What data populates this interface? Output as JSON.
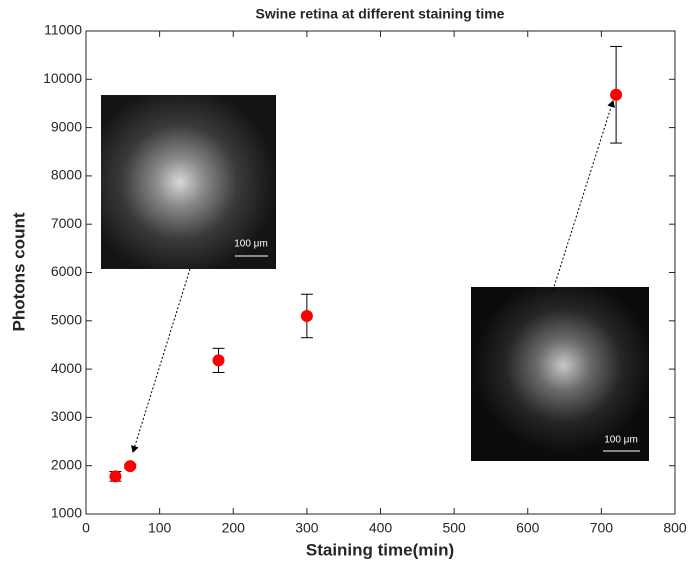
{
  "chart_data": {
    "type": "scatter",
    "title": "Swine retina at different staining time",
    "xlabel": "Staining time(min)",
    "ylabel": "Photons count",
    "x": [
      40,
      60,
      180,
      300,
      720
    ],
    "values": [
      1780,
      1990,
      4180,
      5100,
      9680
    ],
    "errors": [
      100,
      40,
      250,
      450,
      1000
    ],
    "color": "#ff0000",
    "xlim": [
      0,
      800
    ],
    "ylim": [
      1000,
      11000
    ],
    "xticks": [
      0,
      100,
      200,
      300,
      400,
      500,
      600,
      700,
      800
    ],
    "yticks": [
      1000,
      2000,
      3000,
      4000,
      5000,
      6000,
      7000,
      8000,
      9000,
      10000,
      11000
    ],
    "insets": [
      {
        "scale_label": "100 μm"
      },
      {
        "scale_label": "100 μm"
      }
    ]
  }
}
